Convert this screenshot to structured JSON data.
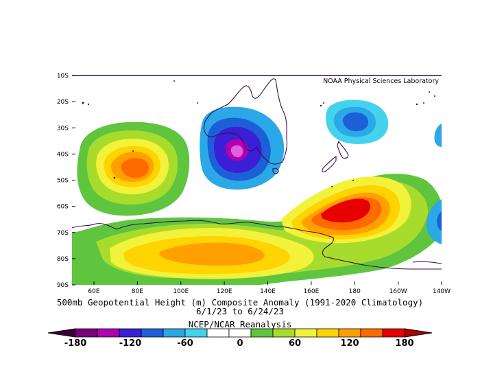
{
  "credit": "NOAA Physical Sciences Laboratory",
  "title_line1": "500mb Geopotential Height (m) Composite Anomaly (1991-2020 Climatology)",
  "title_line2": "6/1/23   to 6/24/23",
  "title_line3": "NCEP/NCAR Reanalysis",
  "lat_labels": [
    "10S",
    "20S",
    "30S",
    "40S",
    "50S",
    "60S",
    "70S",
    "80S",
    "90S"
  ],
  "lon_labels": [
    "60E",
    "80E",
    "100E",
    "120E",
    "140E",
    "160E",
    "180",
    "160W",
    "140W"
  ],
  "colorbar": {
    "labels": [
      "-180",
      "-120",
      "-60",
      "0",
      "60",
      "120",
      "180"
    ],
    "colors": [
      "#7a007a",
      "#b000b0",
      "#3a1fd6",
      "#1e5fd8",
      "#2aa8e8",
      "#44d2ec",
      "#ffffff",
      "#ffffff",
      "#5fc53f",
      "#a8dc2c",
      "#f2f23a",
      "#ffd400",
      "#ffa000",
      "#ff6a00",
      "#e60000"
    ]
  },
  "regions": {
    "indian_ocean_high": {
      "peak": 120,
      "colors": [
        "#5fc53f",
        "#a8dc2c",
        "#f2f23a",
        "#ffd400",
        "#ffa000",
        "#ff6a00"
      ]
    },
    "australia_low": {
      "peak": -180,
      "colors": [
        "#2aa8e8",
        "#1e5fd8",
        "#3a1fd6",
        "#b000b0",
        "#e060e0"
      ]
    },
    "tasman_low": {
      "peak": -90,
      "colors": [
        "#44d2ec",
        "#2aa8e8",
        "#1e5fd8"
      ]
    },
    "pacific_high": {
      "peak": 180,
      "colors": [
        "#5fc53f",
        "#a8dc2c",
        "#f2f23a",
        "#ffd400",
        "#ffa000",
        "#ff6a00",
        "#e60000"
      ]
    },
    "antarctic_high": {
      "peak": 120,
      "colors": [
        "#5fc53f",
        "#a8dc2c",
        "#f2f23a",
        "#ffd400",
        "#ffa000"
      ]
    }
  }
}
